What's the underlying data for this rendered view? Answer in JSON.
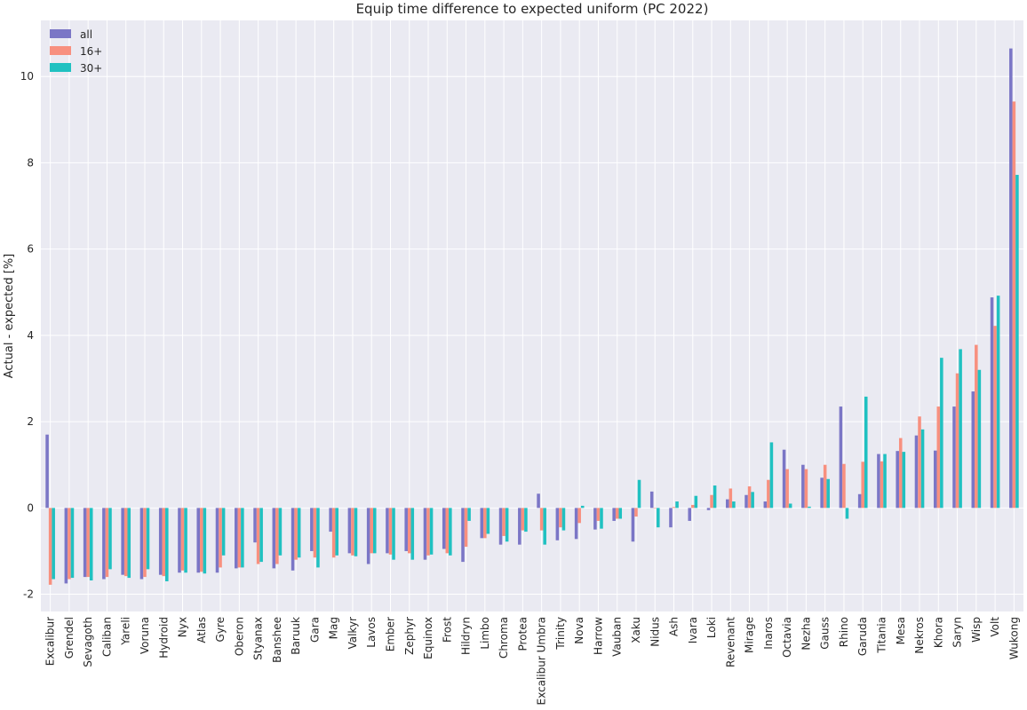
{
  "chart_data": {
    "type": "bar",
    "title": "Equip time difference to expected uniform (PC 2022)",
    "xlabel": "",
    "ylabel": "Actual - expected [%]",
    "ylim": [
      -2.4,
      11.3
    ],
    "yticks": [
      -2,
      0,
      2,
      4,
      6,
      8,
      10
    ],
    "grid": true,
    "legend_position": "top-left",
    "categories": [
      "Excalibur",
      "Grendel",
      "Sevagoth",
      "Caliban",
      "Yareli",
      "Voruna",
      "Hydroid",
      "Nyx",
      "Atlas",
      "Gyre",
      "Oberon",
      "Styanax",
      "Banshee",
      "Baruuk",
      "Gara",
      "Mag",
      "Valkyr",
      "Lavos",
      "Ember",
      "Zephyr",
      "Equinox",
      "Frost",
      "Hildryn",
      "Limbo",
      "Chroma",
      "Protea",
      "Excalibur Umbra",
      "Trinity",
      "Nova",
      "Harrow",
      "Vauban",
      "Xaku",
      "Nidus",
      "Ash",
      "Ivara",
      "Loki",
      "Revenant",
      "Mirage",
      "Inaros",
      "Octavia",
      "Nezha",
      "Gauss",
      "Rhino",
      "Garuda",
      "Titania",
      "Mesa",
      "Nekros",
      "Khora",
      "Saryn",
      "Wisp",
      "Volt",
      "Wukong"
    ],
    "series": [
      {
        "name": "all",
        "color": "#7b76c6",
        "values": [
          1.7,
          -1.75,
          -1.6,
          -1.65,
          -1.55,
          -1.65,
          -1.55,
          -1.5,
          -1.5,
          -1.5,
          -1.4,
          -0.8,
          -1.4,
          -1.45,
          -1.0,
          -0.55,
          -1.05,
          -1.3,
          -1.05,
          -1.0,
          -1.2,
          -0.95,
          -1.25,
          -0.7,
          -0.85,
          -0.85,
          0.33,
          -0.75,
          -0.72,
          -0.5,
          -0.3,
          -0.78,
          0.38,
          -0.45,
          -0.3,
          -0.05,
          0.2,
          0.3,
          0.15,
          1.35,
          1.0,
          0.7,
          2.35,
          0.32,
          1.25,
          1.32,
          1.68,
          1.33,
          2.35,
          2.7,
          4.88,
          10.65
        ]
      },
      {
        "name": "16+",
        "color": "#f8907f",
        "values": [
          -1.78,
          -1.65,
          -1.6,
          -1.6,
          -1.58,
          -1.6,
          -1.58,
          -1.45,
          -1.48,
          -1.38,
          -1.38,
          -1.3,
          -1.3,
          -1.2,
          -1.15,
          -1.15,
          -1.1,
          -1.05,
          -1.08,
          -1.05,
          -1.1,
          -1.05,
          -0.9,
          -0.7,
          -0.65,
          -0.52,
          -0.52,
          -0.45,
          -0.35,
          -0.3,
          -0.25,
          -0.2,
          0.0,
          0.02,
          0.07,
          0.3,
          0.45,
          0.5,
          0.65,
          0.9,
          0.9,
          1.0,
          1.02,
          1.07,
          1.08,
          1.62,
          2.12,
          2.35,
          3.12,
          3.78,
          4.22,
          9.42
        ]
      },
      {
        "name": "30+",
        "color": "#20c1c1",
        "values": [
          -1.65,
          -1.62,
          -1.68,
          -1.42,
          -1.62,
          -1.42,
          -1.7,
          -1.5,
          -1.52,
          -1.1,
          -1.38,
          -1.25,
          -1.1,
          -1.15,
          -1.38,
          -1.1,
          -1.12,
          -1.05,
          -1.2,
          -1.2,
          -1.08,
          -1.1,
          -0.3,
          -0.6,
          -0.78,
          -0.55,
          -0.85,
          -0.52,
          0.05,
          -0.48,
          -0.25,
          0.65,
          -0.45,
          0.15,
          0.28,
          0.52,
          0.15,
          0.37,
          1.52,
          0.1,
          0.03,
          0.67,
          -0.25,
          2.58,
          1.25,
          1.3,
          1.82,
          3.48,
          3.68,
          3.2,
          4.92,
          7.72
        ]
      }
    ]
  }
}
